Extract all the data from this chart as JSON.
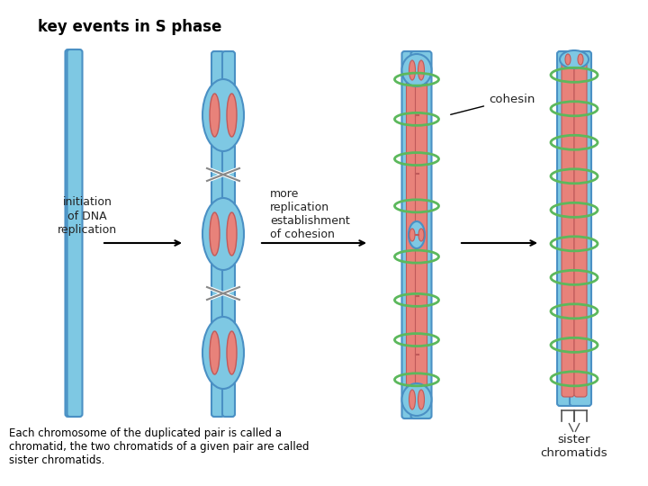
{
  "title": "key events in S phase",
  "bg_color": "#ffffff",
  "blue_fill": "#7ec8e3",
  "blue_edge": "#4a90c4",
  "blue_light": "#a8cfe8",
  "red_fill": "#e8827a",
  "red_edge": "#c05a5a",
  "green_color": "#5cb85c",
  "text_color": "#222222",
  "label_initiation": "initiation\nof DNA\nreplication",
  "label_more": "more\nreplication\nestablishment\nof cohesion",
  "label_cohesin": "cohesin",
  "label_sister": "sister\nchromatids",
  "caption": "Each chromosome of the duplicated pair is called a\nchromatid, the two chromatids of a given pair are called\nsister chromatids.",
  "fig_width": 7.2,
  "fig_height": 5.4
}
